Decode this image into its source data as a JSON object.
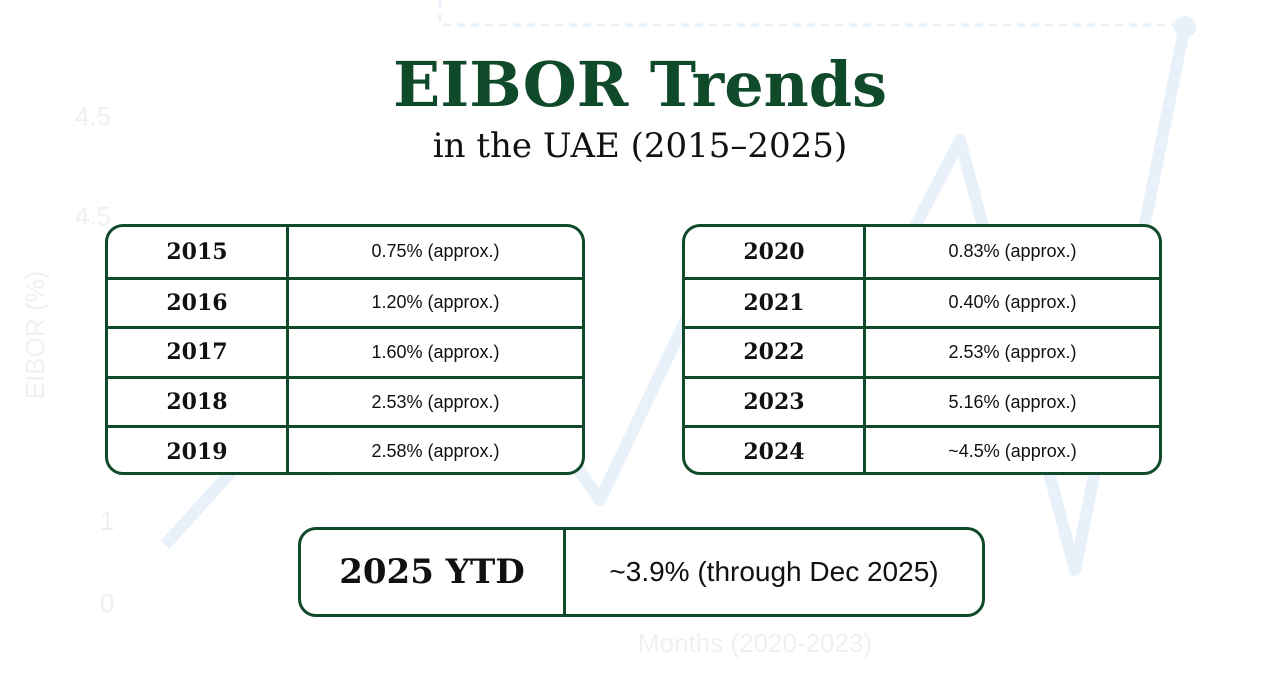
{
  "header": {
    "title": "EIBOR Trends",
    "subtitle": "in the UAE (2015–2025)"
  },
  "tables": [
    {
      "rows": [
        [
          "2015",
          "0.75% (approx.)"
        ],
        [
          "2016",
          "1.20% (approx.)"
        ],
        [
          "2017",
          "1.60% (approx.)"
        ],
        [
          "2018",
          "2.53% (approx.)"
        ],
        [
          "2019",
          "2.58% (approx.)"
        ]
      ]
    },
    {
      "rows": [
        [
          "2020",
          "0.83% (approx.)"
        ],
        [
          "2021",
          "0.40% (approx.)"
        ],
        [
          "2022",
          "2.53% (approx.)"
        ],
        [
          "2023",
          "5.16% (approx.)"
        ],
        [
          "2024",
          "~4.5% (approx.)"
        ]
      ]
    }
  ],
  "highlight": {
    "label": "2025 YTD",
    "value": "~3.9% (through Dec 2025)"
  },
  "background": {
    "y_labels": [
      "4.5",
      "4.5",
      "1",
      "0"
    ],
    "y_title": "EIBOR (%)",
    "x_title": "Months (2020-2023)"
  }
}
